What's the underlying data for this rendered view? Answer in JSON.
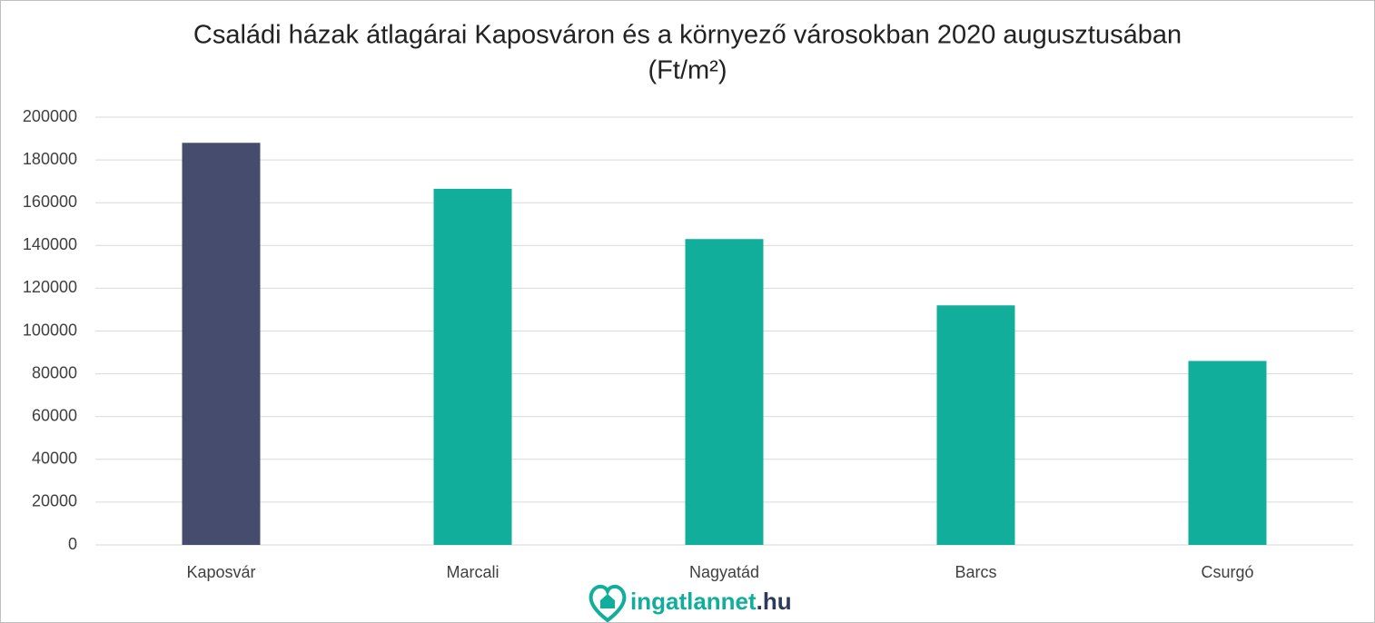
{
  "chart_data": {
    "type": "bar",
    "title": "Családi házak átlagárai Kaposváron és a környező városokban 2020 augusztusában",
    "subtitle": "(Ft/m²)",
    "categories": [
      "Kaposvár",
      "Marcali",
      "Nagyatád",
      "Barcs",
      "Csurgó"
    ],
    "values": [
      188000,
      166500,
      143000,
      112000,
      86000
    ],
    "colors": [
      "#464c6e",
      "#12ae9c",
      "#12ae9c",
      "#12ae9c",
      "#12ae9c"
    ],
    "ylim": [
      0,
      200000
    ],
    "yticks": [
      0,
      20000,
      40000,
      60000,
      80000,
      100000,
      120000,
      140000,
      160000,
      180000,
      200000
    ],
    "grid": true,
    "logo": {
      "name": "ingatlannet",
      "suffix": ".hu"
    }
  }
}
